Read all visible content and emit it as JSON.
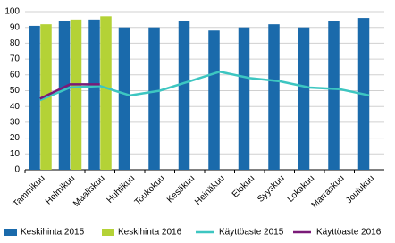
{
  "chart_data": {
    "type": "bar-line",
    "categories": [
      "Tammikuu",
      "Helmikuu",
      "Maaliskuu",
      "Huhtikuu",
      "Toukokuu",
      "Kesäkuu",
      "Heinäkuu",
      "Elokuu",
      "Syyskuu",
      "Lokakuu",
      "Marraskuu",
      "Joulukuu"
    ],
    "series": [
      {
        "name": "Keskihinta 2015",
        "kind": "bar",
        "color": "#1a6aab",
        "values": [
          91,
          94,
          95,
          90,
          90,
          94,
          88,
          90,
          92,
          90,
          94,
          96
        ]
      },
      {
        "name": "Keskihinta 2016",
        "kind": "bar",
        "color": "#b4d236",
        "values": [
          92,
          95,
          97,
          null,
          null,
          null,
          null,
          null,
          null,
          null,
          null,
          null
        ]
      },
      {
        "name": "Käyttöaste 2015",
        "kind": "line",
        "color": "#3dc6c1",
        "values": [
          44,
          52,
          53,
          47,
          50,
          56,
          62,
          58,
          56,
          52,
          51,
          47
        ]
      },
      {
        "name": "Käyttöaste 2016",
        "kind": "line",
        "color": "#7a1a78",
        "values": [
          45,
          54,
          54,
          null,
          null,
          null,
          null,
          null,
          null,
          null,
          null,
          null
        ]
      }
    ],
    "ylim": [
      0,
      100
    ],
    "yticks": [
      0,
      10,
      20,
      30,
      40,
      50,
      60,
      70,
      80,
      90,
      100
    ],
    "grid": true
  }
}
